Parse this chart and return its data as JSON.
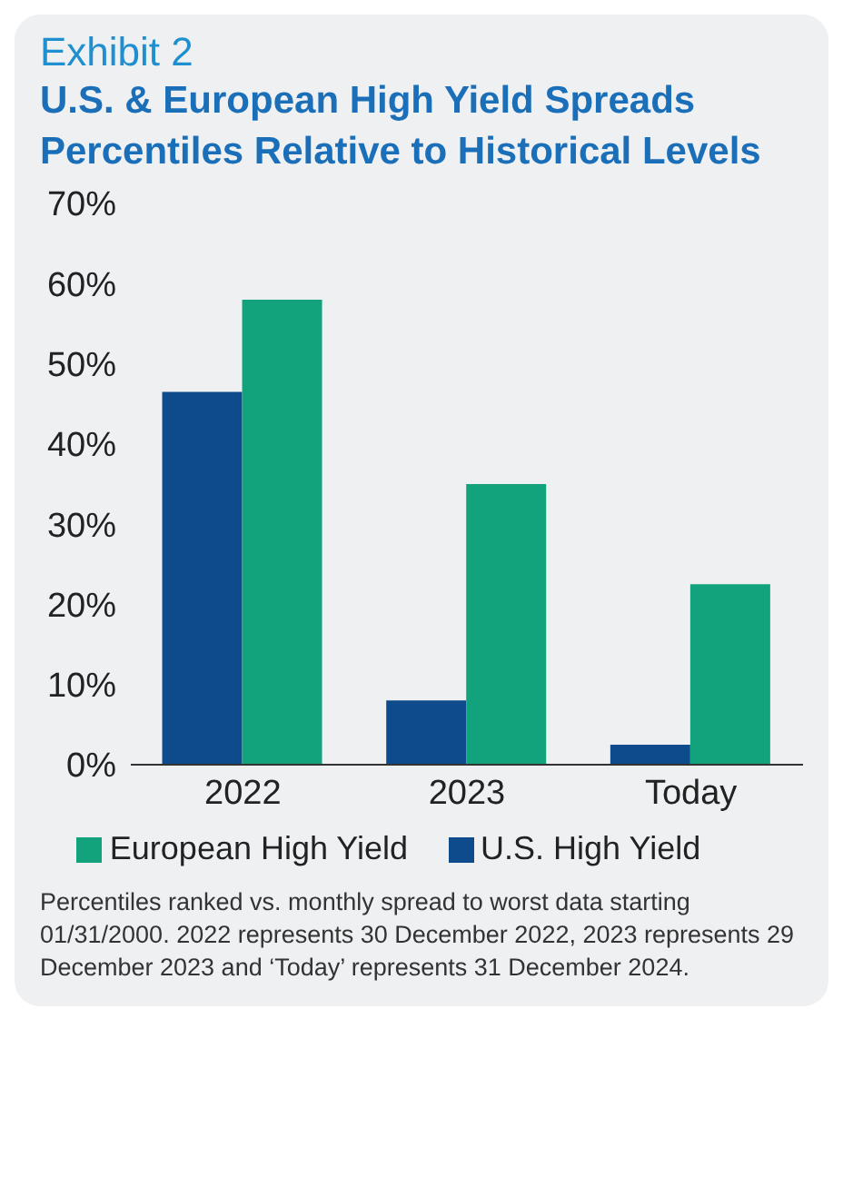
{
  "chart_data": {
    "type": "bar",
    "subtitle": "Exhibit 2",
    "title": "U.S. & European High Yield Spreads Percentiles Relative to Historical Levels",
    "categories": [
      "2022",
      "2023",
      "Today"
    ],
    "series": [
      {
        "name": "U.S. High Yield",
        "color": "#0e4b8c",
        "values": [
          46.5,
          8,
          2.5
        ]
      },
      {
        "name": "European High Yield",
        "color": "#13a37c",
        "values": [
          58,
          35,
          22.5
        ]
      }
    ],
    "ylim": [
      0,
      70
    ],
    "yticks": [
      {
        "value": 0,
        "label": "0%"
      },
      {
        "value": 10,
        "label": "10%"
      },
      {
        "value": 20,
        "label": "20%"
      },
      {
        "value": 30,
        "label": "30%"
      },
      {
        "value": 40,
        "label": "40%"
      },
      {
        "value": 50,
        "label": "50%"
      },
      {
        "value": 60,
        "label": "60%"
      },
      {
        "value": 70,
        "label": "70%"
      }
    ],
    "grid": false,
    "legend": "bottom",
    "annotations": [
      "Percentiles ranked vs. monthly spread to worst data starting 01/31/2000. 2022 represents 30 December 2022, 2023 represents 29 December 2023 and ‘Today’ represents 31 December 2024."
    ]
  }
}
